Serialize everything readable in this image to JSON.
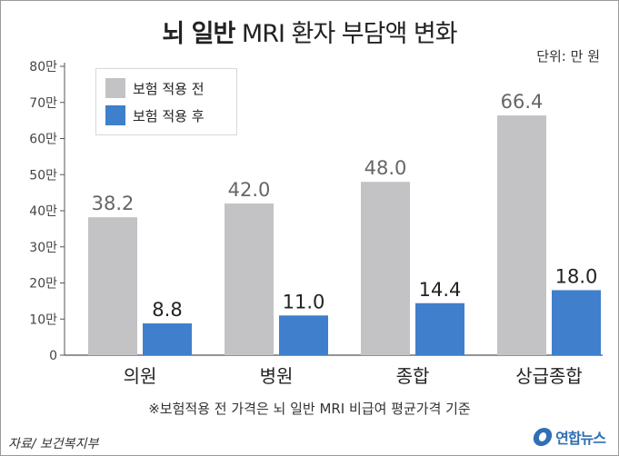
{
  "header": {
    "title_bold": "뇌 일반",
    "title_rest": "MRI 환자 부담액 변화",
    "unit": "단위: 만 원"
  },
  "footnote": "※보험적용 전 가격은 뇌 일반 MRI 비급여 평균가격 기준",
  "source": "자료/ 보건복지부",
  "logo": {
    "text": "연합뉴스",
    "icon": "yonhap-logo-icon"
  },
  "colors": {
    "before": "#c3c3c6",
    "after": "#3f7fcc",
    "axis": "#555555"
  },
  "chart_data": {
    "type": "bar",
    "title": "뇌 일반 MRI 환자 부담액 변화",
    "categories": [
      "의원",
      "병원",
      "종합",
      "상급종합"
    ],
    "series": [
      {
        "name": "보험 적용 전",
        "values": [
          38.2,
          42.0,
          48.0,
          66.4
        ],
        "labels": [
          "38.2",
          "42.0",
          "48.0",
          "66.4"
        ]
      },
      {
        "name": "보험 적용 후",
        "values": [
          8.8,
          11.0,
          14.4,
          18.0
        ],
        "labels": [
          "8.8",
          "11.0",
          "14.4",
          "18.0"
        ]
      }
    ],
    "yticks": [
      0,
      10,
      20,
      30,
      40,
      50,
      60,
      70,
      80
    ],
    "ytick_labels": [
      "0",
      "10만",
      "20만",
      "30만",
      "40만",
      "50만",
      "60만",
      "70만",
      "80만"
    ],
    "ylim": [
      0,
      80
    ],
    "xlabel": "",
    "ylabel": "",
    "legend_position": "top-left",
    "grid": false
  }
}
